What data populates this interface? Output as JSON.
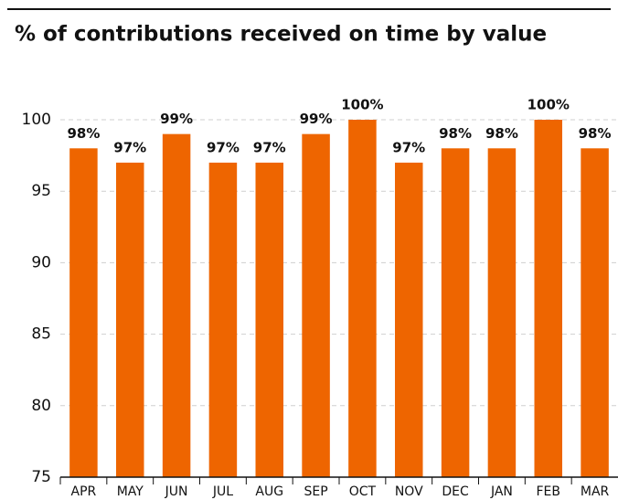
{
  "chart_data": {
    "type": "bar",
    "title": "% of contributions received on time by value",
    "categories": [
      "APR",
      "MAY",
      "JUN",
      "JUL",
      "AUG",
      "SEP",
      "OCT",
      "NOV",
      "DEC",
      "JAN",
      "FEB",
      "MAR"
    ],
    "values": [
      98,
      97,
      99,
      97,
      97,
      99,
      100,
      97,
      98,
      98,
      100,
      98
    ],
    "value_labels": [
      "98%",
      "97%",
      "99%",
      "97%",
      "97%",
      "99%",
      "100%",
      "97%",
      "98%",
      "98%",
      "100%",
      "98%"
    ],
    "color": "#ee6500",
    "ylim": [
      75,
      100
    ],
    "yticks": [
      75,
      80,
      85,
      90,
      95,
      100
    ],
    "grid": true
  }
}
